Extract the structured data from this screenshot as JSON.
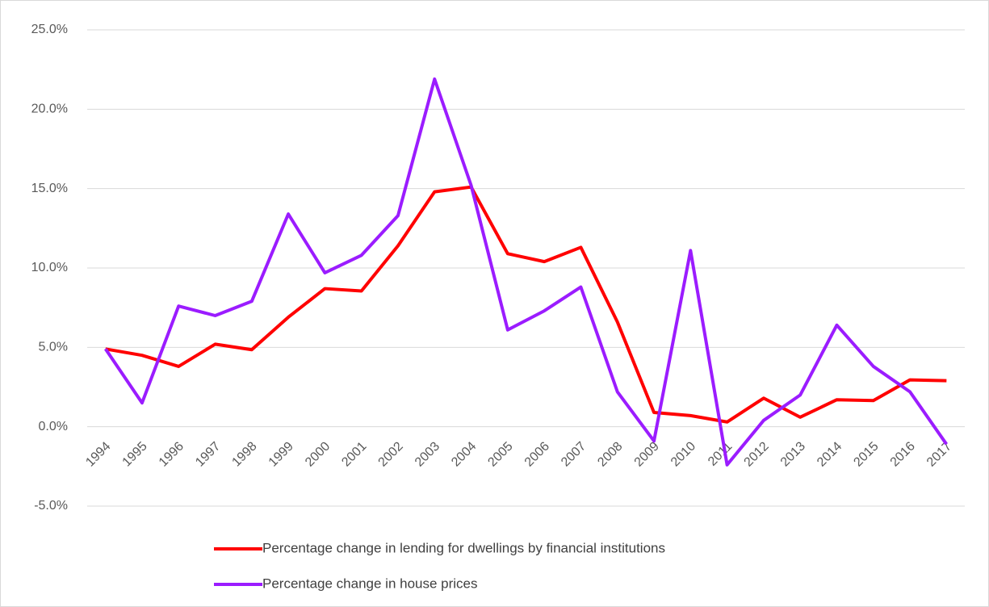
{
  "chart_data": {
    "type": "line",
    "categories": [
      "1994",
      "1995",
      "1996",
      "1997",
      "1998",
      "1999",
      "2000",
      "2001",
      "2002",
      "2003",
      "2004",
      "2005",
      "2006",
      "2007",
      "2008",
      "2009",
      "2010",
      "2011",
      "2012",
      "2013",
      "2014",
      "2015",
      "2016",
      "2017"
    ],
    "series": [
      {
        "name": "Percentage change in lending for dwellings by financial institutions",
        "color": "#ff0000",
        "values": [
          4.9,
          4.5,
          3.8,
          5.2,
          4.85,
          6.9,
          8.7,
          8.55,
          11.4,
          14.8,
          15.1,
          10.9,
          10.4,
          11.3,
          6.6,
          0.9,
          0.7,
          0.3,
          1.8,
          0.6,
          1.7,
          1.65,
          2.95,
          2.9
        ]
      },
      {
        "name": "Percentage change in house prices",
        "color": "#9b1cff",
        "values": [
          4.9,
          1.5,
          7.6,
          7.0,
          7.9,
          13.4,
          9.7,
          10.8,
          13.3,
          21.9,
          15.2,
          6.1,
          7.3,
          8.8,
          2.2,
          -0.9,
          11.1,
          -2.4,
          0.4,
          2.0,
          6.4,
          3.8,
          2.2,
          -1.1
        ]
      }
    ],
    "ylim": [
      -5,
      25
    ],
    "yticks": [
      {
        "value": -5,
        "label": "-5.0%"
      },
      {
        "value": 0,
        "label": "0.0%"
      },
      {
        "value": 5,
        "label": "5.0%"
      },
      {
        "value": 10,
        "label": "10.0%"
      },
      {
        "value": 15,
        "label": "15.0%"
      },
      {
        "value": 20,
        "label": "20.0%"
      },
      {
        "value": 25,
        "label": "25.0%"
      }
    ],
    "grid": true,
    "legend": "bottom"
  }
}
